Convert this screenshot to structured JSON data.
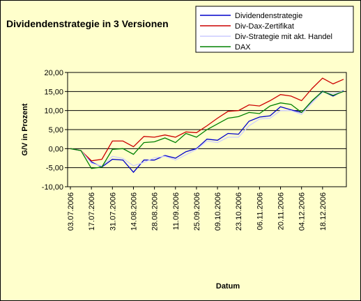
{
  "chart_data": {
    "type": "line",
    "title": "Dividendenstrategie in 3 Versionen",
    "xlabel": "Datum",
    "ylabel": "G/V in Prozent",
    "ylim": [
      -10,
      20
    ],
    "yticks": [
      "-10,00",
      "-5,00",
      "0,00",
      "5,00",
      "10,00",
      "15,00",
      "20,00"
    ],
    "ytick_values": [
      -10,
      -5,
      0,
      5,
      10,
      15,
      20
    ],
    "xtick_labels": [
      "03.07.2006",
      "17.07.2006",
      "31.07.2006",
      "14.08.2006",
      "28.08.2006",
      "11.09.2006",
      "25.09.2006",
      "09.10.2006",
      "23.10.2006",
      "06.11.2006",
      "20.11.2006",
      "04.12.2006",
      "18.12.2006"
    ],
    "legend_position": "top-right",
    "grid": "horizontal",
    "plot_background": "#ffffcc",
    "x": [
      "03.07.2006",
      "10.07.2006",
      "17.07.2006",
      "24.07.2006",
      "31.07.2006",
      "07.08.2006",
      "14.08.2006",
      "21.08.2006",
      "28.08.2006",
      "04.09.2006",
      "11.09.2006",
      "18.09.2006",
      "25.09.2006",
      "02.10.2006",
      "09.10.2006",
      "16.10.2006",
      "23.10.2006",
      "30.10.2006",
      "06.11.2006",
      "13.11.2006",
      "20.11.2006",
      "27.11.2006",
      "04.12.2006",
      "11.12.2006",
      "18.12.2006",
      "25.12.2006",
      "29.12.2006"
    ],
    "series": [
      {
        "name": "Dividendenstrategie",
        "color": "#0000cc",
        "values": [
          0,
          -0.5,
          -3.5,
          -4.8,
          -2.8,
          -3.0,
          -6.2,
          -3.0,
          -3.0,
          -1.8,
          -2.5,
          -0.8,
          0,
          2.5,
          2.2,
          4.0,
          3.8,
          7.2,
          8.3,
          8.6,
          11.0,
          10.2,
          9.5,
          12.5,
          15.1,
          13.8,
          15.2
        ]
      },
      {
        "name": "Div-Dax-Zertifikat",
        "color": "#cc0000",
        "values": [
          0,
          -0.5,
          -3.2,
          -2.8,
          2.0,
          2.0,
          0.5,
          3.2,
          3.0,
          3.6,
          3.0,
          4.4,
          4.2,
          6.0,
          8.0,
          9.8,
          10.0,
          11.5,
          11.2,
          12.6,
          14.2,
          13.8,
          12.6,
          15.8,
          18.5,
          17.0,
          18.2
        ]
      },
      {
        "name": "Div-Strategie mit akt. Handel",
        "color": "#ccccff",
        "values": [
          0,
          -0.5,
          -3.8,
          -4.6,
          -2.0,
          -2.6,
          -4.5,
          -3.6,
          -2.4,
          -2.0,
          -3.0,
          -1.6,
          -0.2,
          2.0,
          1.6,
          3.0,
          3.0,
          6.0,
          7.8,
          8.0,
          10.0,
          10.0,
          9.0,
          12.0,
          14.8,
          14.5,
          15.0
        ]
      },
      {
        "name": "DAX",
        "color": "#008000",
        "values": [
          0,
          -0.5,
          -5.2,
          -4.8,
          -0.2,
          0,
          -1.5,
          1.6,
          1.8,
          2.8,
          1.6,
          4.0,
          3.0,
          5.0,
          6.5,
          8.0,
          8.4,
          9.5,
          9.2,
          11.2,
          12.0,
          11.6,
          9.5,
          12.6,
          15.0,
          14.0,
          15.0
        ]
      }
    ]
  }
}
